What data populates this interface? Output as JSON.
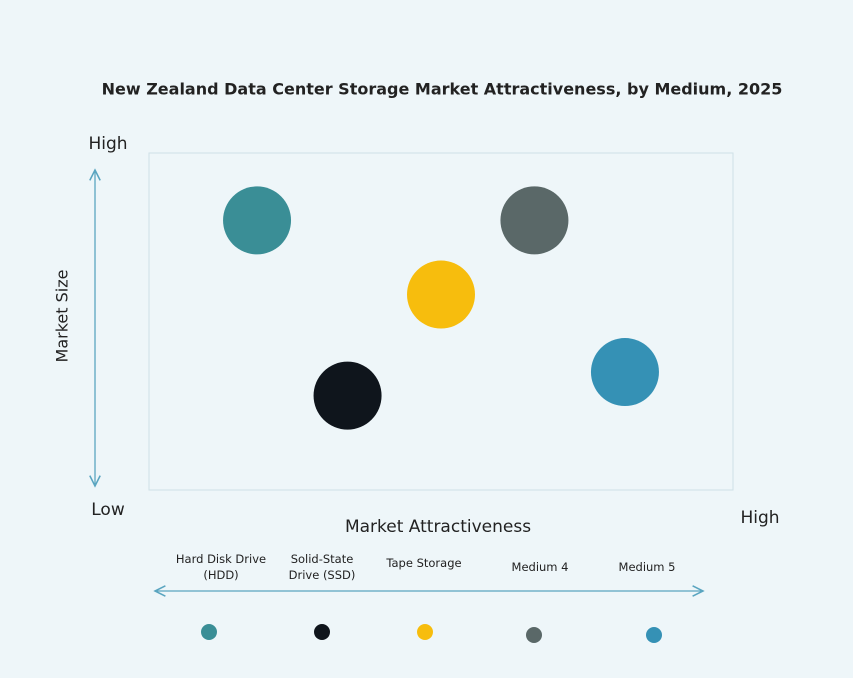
{
  "chart_data": {
    "type": "scatter",
    "title": "New Zealand Data Center Storage Market Attractiveness,  by Medium, 2025",
    "x_label": "Market Attractiveness",
    "y_label": "Market Size",
    "xlim": [
      0,
      100
    ],
    "ylim": [
      0,
      100
    ],
    "xticks": [
      {
        "value": 100,
        "label": "High"
      }
    ],
    "yticks": [
      {
        "value": 0,
        "label": "Low"
      },
      {
        "value": 100,
        "label": "High"
      }
    ],
    "series": [
      {
        "name": "Hard Disk Drive (HDD)",
        "color": "#3a8e96",
        "x": [
          18.5
        ],
        "values": [
          80
        ]
      },
      {
        "name": "Solid-State Drive (SSD)",
        "color": "#0f151c",
        "x": [
          34
        ],
        "values": [
          28
        ]
      },
      {
        "name": "Tape Storage",
        "color": "#f7bd0d",
        "x": [
          50
        ],
        "values": [
          58
        ]
      },
      {
        "name": "Medium 4",
        "color": "#5a6868",
        "x": [
          66
        ],
        "values": [
          80
        ]
      },
      {
        "name": "Medium 5",
        "color": "#3591b5",
        "x": [
          81.5
        ],
        "values": [
          35
        ]
      }
    ]
  }
}
